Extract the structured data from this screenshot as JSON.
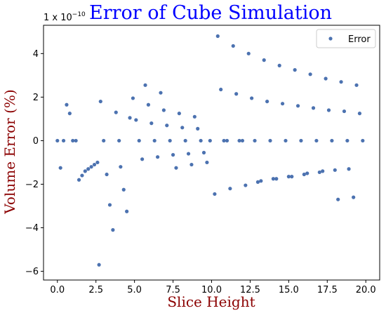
{
  "chart_data": {
    "type": "scatter",
    "title": "Error of Cube Simulation",
    "title_color": "#0000ff",
    "xlabel": "Slice Height",
    "ylabel": "Volume Error (%)",
    "label_color": "#8b0000",
    "offset_text": "1 x 10^-10",
    "offset_base": "1 x 10",
    "offset_exp": "−10",
    "xlim": [
      -0.9,
      20.9
    ],
    "ylim": [
      -6.4,
      5.3
    ],
    "x_ticks": [
      0.0,
      2.5,
      5.0,
      7.5,
      10.0,
      12.5,
      15.0,
      17.5,
      20.0
    ],
    "x_tick_labels": [
      "0.0",
      "2.5",
      "5.0",
      "7.5",
      "10.0",
      "12.5",
      "15.0",
      "17.5",
      "20.0"
    ],
    "y_ticks": [
      -6,
      -4,
      -2,
      0,
      2,
      4
    ],
    "y_tick_labels": [
      "−6",
      "−4",
      "−2",
      "0",
      "2",
      "4"
    ],
    "grid": false,
    "legend_position": "top-right",
    "series": [
      {
        "name": "Error",
        "color": "#4c72b0",
        "points": [
          [
            0.0,
            0.0
          ],
          [
            0.2,
            -1.25
          ],
          [
            0.4,
            0.0
          ],
          [
            0.6,
            1.65
          ],
          [
            0.8,
            1.25
          ],
          [
            1.0,
            0.0
          ],
          [
            1.2,
            0.0
          ],
          [
            1.4,
            -1.8
          ],
          [
            1.6,
            -1.6
          ],
          [
            1.8,
            -1.4
          ],
          [
            2.0,
            -1.3
          ],
          [
            2.2,
            -1.2
          ],
          [
            2.4,
            -1.1
          ],
          [
            2.6,
            -1.0
          ],
          [
            2.7,
            -5.7
          ],
          [
            2.8,
            1.8
          ],
          [
            3.0,
            0.0
          ],
          [
            3.2,
            -1.55
          ],
          [
            3.4,
            -2.95
          ],
          [
            3.6,
            -4.1
          ],
          [
            3.8,
            1.3
          ],
          [
            4.0,
            0.0
          ],
          [
            4.1,
            -1.2
          ],
          [
            4.3,
            -2.25
          ],
          [
            4.5,
            -3.25
          ],
          [
            4.7,
            1.05
          ],
          [
            4.9,
            1.95
          ],
          [
            5.1,
            0.95
          ],
          [
            5.3,
            0.0
          ],
          [
            5.5,
            -0.85
          ],
          [
            5.7,
            2.55
          ],
          [
            5.9,
            1.65
          ],
          [
            6.1,
            0.8
          ],
          [
            6.3,
            0.0
          ],
          [
            6.5,
            -0.75
          ],
          [
            6.7,
            2.2
          ],
          [
            6.9,
            1.4
          ],
          [
            7.1,
            0.7
          ],
          [
            7.3,
            0.0
          ],
          [
            7.5,
            -0.65
          ],
          [
            7.7,
            -1.25
          ],
          [
            7.9,
            1.25
          ],
          [
            8.1,
            0.6
          ],
          [
            8.3,
            0.0
          ],
          [
            8.5,
            -0.6
          ],
          [
            8.7,
            -1.1
          ],
          [
            8.9,
            1.1
          ],
          [
            9.1,
            0.55
          ],
          [
            9.3,
            0.0
          ],
          [
            9.5,
            -0.55
          ],
          [
            9.7,
            -1.0
          ],
          [
            9.9,
            0.0
          ],
          [
            10.2,
            -2.45
          ],
          [
            10.4,
            4.8
          ],
          [
            10.6,
            2.35
          ],
          [
            10.8,
            0.0
          ],
          [
            11.0,
            0.0
          ],
          [
            11.2,
            -2.2
          ],
          [
            11.4,
            4.35
          ],
          [
            11.6,
            2.15
          ],
          [
            11.8,
            0.0
          ],
          [
            12.0,
            0.0
          ],
          [
            12.2,
            -2.05
          ],
          [
            12.4,
            4.0
          ],
          [
            12.6,
            1.95
          ],
          [
            12.8,
            0.0
          ],
          [
            13.0,
            -1.9
          ],
          [
            13.2,
            -1.85
          ],
          [
            13.4,
            3.7
          ],
          [
            13.6,
            1.8
          ],
          [
            13.8,
            0.0
          ],
          [
            14.0,
            -1.75
          ],
          [
            14.2,
            -1.75
          ],
          [
            14.4,
            3.45
          ],
          [
            14.6,
            1.7
          ],
          [
            14.8,
            0.0
          ],
          [
            15.0,
            -1.65
          ],
          [
            15.2,
            -1.65
          ],
          [
            15.4,
            3.25
          ],
          [
            15.6,
            1.6
          ],
          [
            15.8,
            0.0
          ],
          [
            16.0,
            -1.55
          ],
          [
            16.2,
            -1.5
          ],
          [
            16.4,
            3.05
          ],
          [
            16.6,
            1.5
          ],
          [
            16.8,
            0.0
          ],
          [
            17.0,
            -1.45
          ],
          [
            17.2,
            -1.4
          ],
          [
            17.4,
            2.85
          ],
          [
            17.6,
            1.4
          ],
          [
            17.8,
            0.0
          ],
          [
            18.0,
            -1.35
          ],
          [
            18.2,
            -2.7
          ],
          [
            18.4,
            2.7
          ],
          [
            18.6,
            1.35
          ],
          [
            18.8,
            0.0
          ],
          [
            18.9,
            -1.3
          ],
          [
            19.2,
            -2.6
          ],
          [
            19.4,
            2.55
          ],
          [
            19.6,
            1.25
          ],
          [
            19.8,
            0.0
          ]
        ]
      }
    ]
  }
}
